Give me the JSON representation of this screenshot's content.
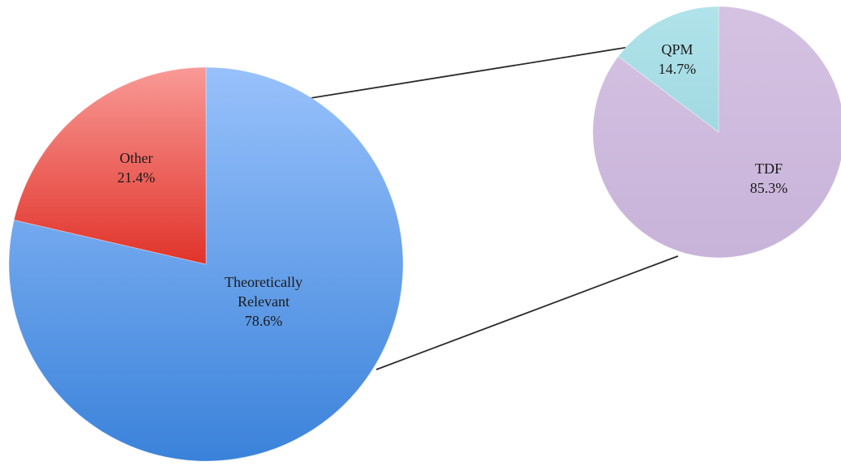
{
  "chart_data": [
    {
      "type": "pie",
      "slices": [
        {
          "label": "Theoretically Relevant",
          "label_lines": [
            "Theoretically",
            "Relevant"
          ],
          "value": 78.6,
          "value_text": "78.6%",
          "color_top": "#98c1fb",
          "color_bottom": "#3a82da"
        },
        {
          "label": "Other",
          "label_lines": [
            "Other"
          ],
          "value": 21.4,
          "value_text": "21.4%",
          "color_top": "#f99a96",
          "color_bottom": "#e0332a"
        }
      ],
      "exploded_slice": "Theoretically Relevant"
    },
    {
      "type": "pie",
      "slices": [
        {
          "label": "TDF",
          "label_lines": [
            "TDF"
          ],
          "value": 85.3,
          "value_text": "85.3%",
          "color_top": "#d5c2e2",
          "color_bottom": "#c8b3d9"
        },
        {
          "label": "QPM",
          "label_lines": [
            "QPM"
          ],
          "value": 14.7,
          "value_text": "14.7%",
          "color_top": "#b0e3ea",
          "color_bottom": "#a2d9e2"
        }
      ],
      "breakdown_of": "Theoretically Relevant"
    }
  ]
}
